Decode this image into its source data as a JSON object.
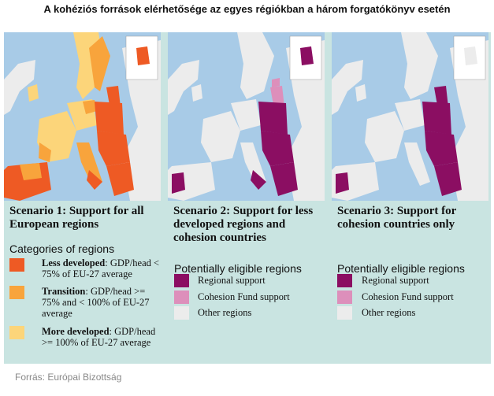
{
  "title": "A kohéziós források elérhetősége az egyes régiókban a három forgatókönyv esetén",
  "source": "Forrás: Európai Bizottság",
  "colors": {
    "less_developed": "#ee5a24",
    "transition": "#f8a43c",
    "more_developed": "#fcd57a",
    "regional_support": "#8b0e62",
    "cohesion_fund": "#dd8fbb",
    "other_regions": "#ececec",
    "panel_bg": "#c9e4e1",
    "sea": "#a8cbe7"
  },
  "scenarios": [
    {
      "heading": "Scenario 1: Support for all European regions",
      "legend_title": "Categories of regions",
      "legend": [
        {
          "bold": "Less developed",
          "text": ": GDP/head < 75% of EU-27 average",
          "color": "#ee5a24"
        },
        {
          "bold": "Transition",
          "text": ": GDP/head >= 75% and < 100% of EU-27 average",
          "color": "#f8a43c"
        },
        {
          "bold": "More developed",
          "text": ": GDP/head >= 100% of EU-27 average",
          "color": "#fcd57a"
        }
      ]
    },
    {
      "heading": "Scenario 2: Support for less developed regions and cohesion countries",
      "legend_title": "Potentially eligible regions",
      "legend": [
        {
          "text": "Regional support",
          "color": "#8b0e62"
        },
        {
          "text": "Cohesion Fund support",
          "color": "#dd8fbb"
        },
        {
          "text": "Other regions",
          "color": "#ececec"
        }
      ]
    },
    {
      "heading": "Scenario 3: Support for cohesion countries only",
      "legend_title": "Potentially eligible regions",
      "legend": [
        {
          "text": "Regional support",
          "color": "#8b0e62"
        },
        {
          "text": "Cohesion Fund support",
          "color": "#dd8fbb"
        },
        {
          "text": "Other regions",
          "color": "#ececec"
        }
      ]
    }
  ]
}
